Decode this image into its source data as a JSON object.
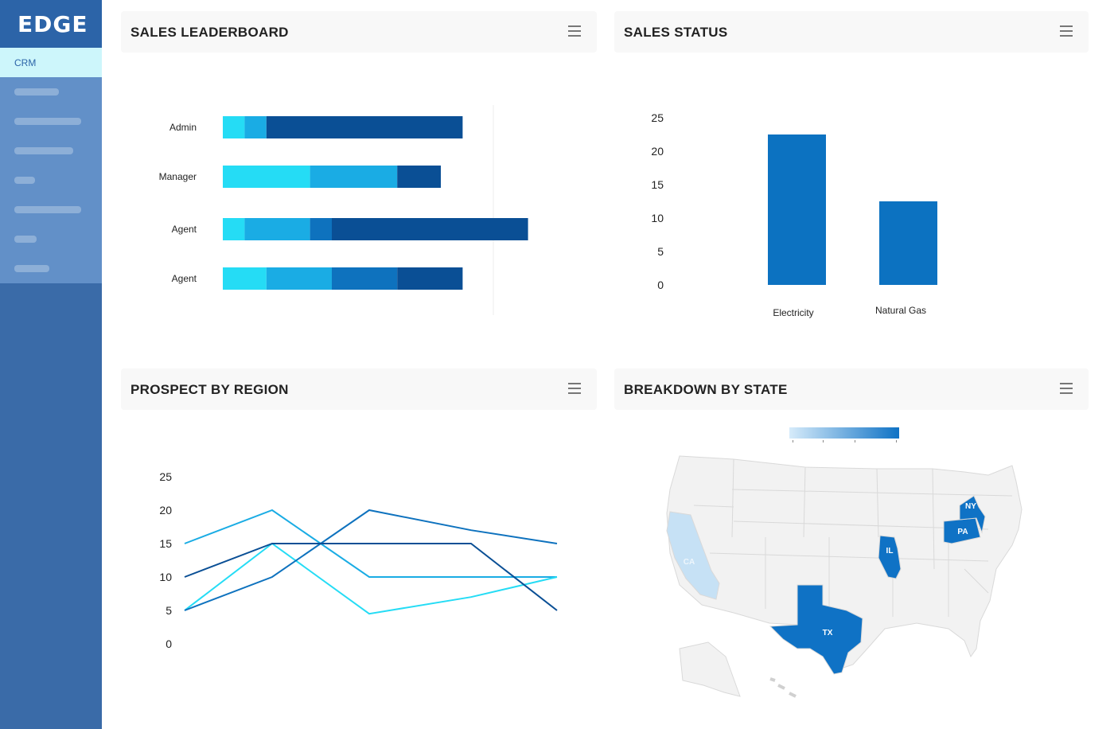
{
  "app": {
    "logo": "EDGE",
    "nav": [
      {
        "label": "CRM",
        "active": true
      },
      {
        "label": "",
        "blurred_width": 56
      },
      {
        "label": "",
        "blurred_width": 84
      },
      {
        "label": "",
        "blurred_width": 74
      },
      {
        "label": "",
        "blurred_width": 26
      },
      {
        "label": "",
        "blurred_width": 84
      },
      {
        "label": "",
        "blurred_width": 28
      },
      {
        "label": "",
        "blurred_width": 44
      }
    ]
  },
  "panels": {
    "leaderboard": {
      "title": "SALES LEADERBOARD"
    },
    "status": {
      "title": "SALES STATUS"
    },
    "region": {
      "title": "PROSPECT BY REGION"
    },
    "state": {
      "title": "BREAKDOWN BY STATE"
    }
  },
  "colors": {
    "c1": "#25dcf5",
    "c2": "#1aace4",
    "c3": "#0e72be",
    "c4": "#0a4f95",
    "bar": "#0c72c1",
    "map_empty": "#f2f2f2",
    "map_light": "#c6e1f5",
    "map_dark": "#0f72c5"
  },
  "chart_data": [
    {
      "type": "bar",
      "orientation": "horizontal",
      "stacked": true,
      "categories": [
        "Admin",
        "Manager",
        "Agent",
        "Agent"
      ],
      "series": [
        {
          "values": [
            2,
            8,
            2,
            4
          ]
        },
        {
          "values": [
            2,
            8,
            6,
            6
          ]
        },
        {
          "values": [
            0,
            0,
            2,
            6
          ]
        },
        {
          "values": [
            18,
            4,
            18,
            6
          ]
        }
      ],
      "xlim": [
        0,
        30
      ]
    },
    {
      "type": "bar",
      "categories": [
        "Electricity",
        "Natural Gas"
      ],
      "values": [
        22.5,
        12.5
      ],
      "yticks": [
        "0",
        "5",
        "10",
        "15",
        "20",
        "25"
      ],
      "ylim": [
        0,
        25
      ]
    },
    {
      "type": "line",
      "x": [
        0,
        1,
        2,
        3,
        4
      ],
      "series": [
        {
          "values": [
            15,
            20,
            10,
            10,
            10
          ]
        },
        {
          "values": [
            5,
            15,
            4.5,
            7,
            10
          ]
        },
        {
          "values": [
            5,
            10,
            20,
            17,
            15
          ]
        },
        {
          "values": [
            10,
            15,
            15,
            15,
            5
          ]
        }
      ],
      "yticks": [
        "0",
        "5",
        "10",
        "15",
        "20",
        "25"
      ],
      "ylim": [
        0,
        25
      ]
    },
    {
      "type": "heatmap",
      "map": "US states",
      "highlighted": [
        {
          "state": "CA",
          "level": "light"
        },
        {
          "state": "TX",
          "level": "dark"
        },
        {
          "state": "IL",
          "level": "dark"
        },
        {
          "state": "PA",
          "level": "dark"
        },
        {
          "state": "NY",
          "level": "dark"
        }
      ],
      "legend": "gradient bar, top"
    }
  ]
}
